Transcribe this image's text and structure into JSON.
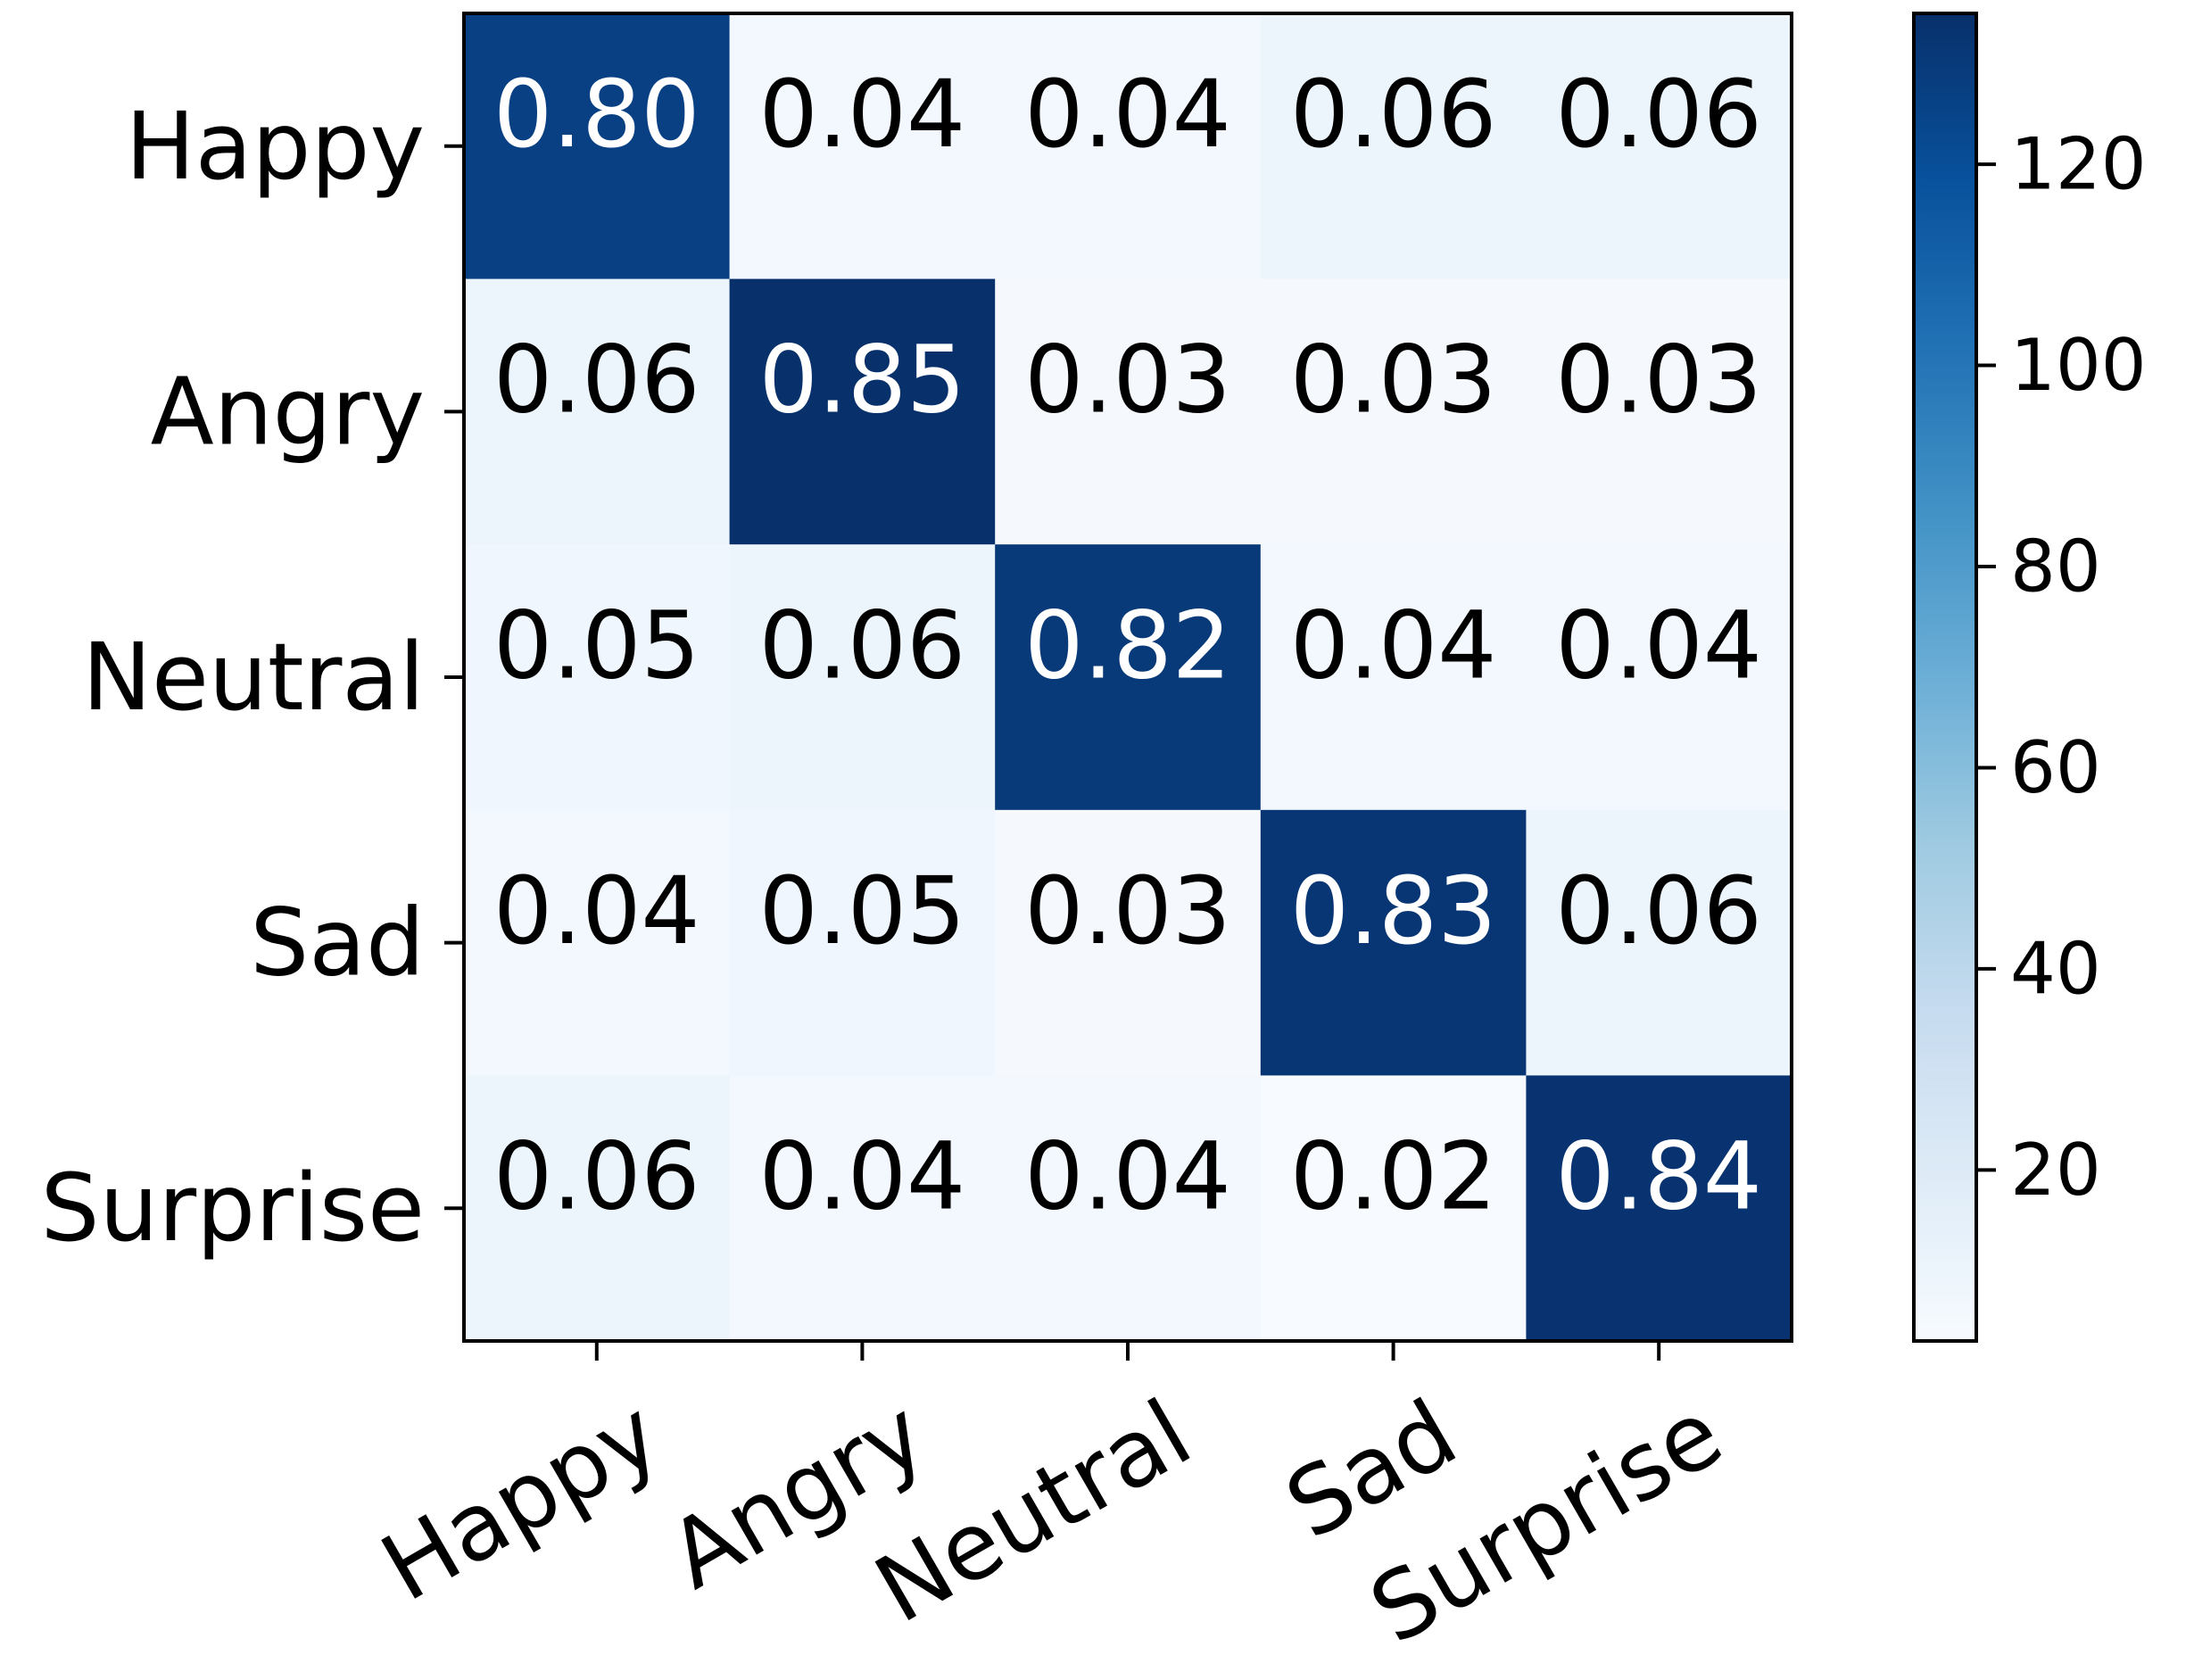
{
  "chart_data": {
    "type": "heatmap",
    "title": "",
    "xlabel": "",
    "ylabel": "",
    "x_categories": [
      "Happy",
      "Angry",
      "Neutral",
      "Sad",
      "Surprise"
    ],
    "y_categories": [
      "Happy",
      "Angry",
      "Neutral",
      "Sad",
      "Surprise"
    ],
    "values": [
      [
        0.8,
        0.04,
        0.04,
        0.06,
        0.06
      ],
      [
        0.06,
        0.85,
        0.03,
        0.03,
        0.03
      ],
      [
        0.05,
        0.06,
        0.82,
        0.04,
        0.04
      ],
      [
        0.04,
        0.05,
        0.03,
        0.83,
        0.06
      ],
      [
        0.06,
        0.04,
        0.04,
        0.02,
        0.84
      ]
    ],
    "value_labels": [
      [
        "0.80",
        "0.04",
        "0.04",
        "0.06",
        "0.06"
      ],
      [
        "0.06",
        "0.85",
        "0.03",
        "0.03",
        "0.03"
      ],
      [
        "0.05",
        "0.06",
        "0.82",
        "0.04",
        "0.04"
      ],
      [
        "0.04",
        "0.05",
        "0.03",
        "0.83",
        "0.06"
      ],
      [
        "0.06",
        "0.04",
        "0.04",
        "0.02",
        "0.84"
      ]
    ],
    "colormap": "Blues",
    "colorbar": {
      "range": [
        3,
        135
      ],
      "ticks": [
        20,
        40,
        60,
        80,
        100,
        120
      ],
      "tick_labels": [
        "20",
        "40",
        "60",
        "80",
        "100",
        "120"
      ]
    },
    "grid": false,
    "x_tick_rotation_deg": 30
  }
}
